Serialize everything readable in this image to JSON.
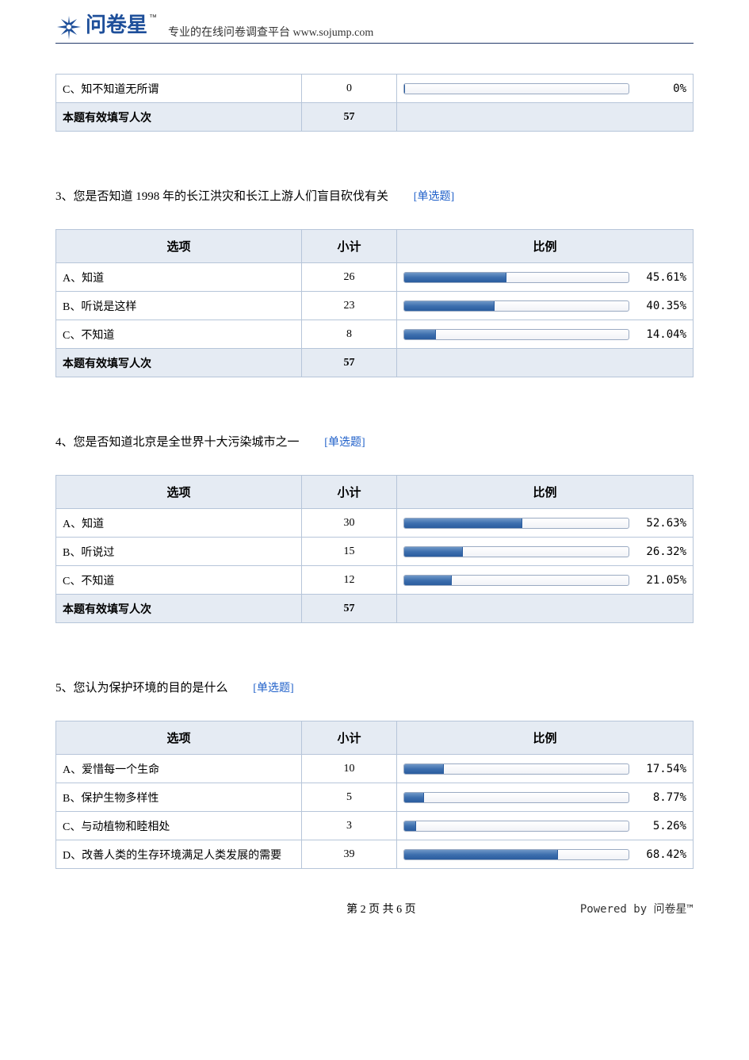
{
  "brand": {
    "logo_text": "问卷星",
    "tm": "™",
    "tagline": "专业的在线问卷调查平台 www.sojump.com",
    "logo_color": "#1e4f9a"
  },
  "colors": {
    "border": "#b6c5d9",
    "header_bg": "#e5ebf3",
    "bar_fill": "#3d6fae",
    "bar_track_border": "#9aaac2",
    "link": "#1e5fc9",
    "rule": "#233a6a"
  },
  "table_headers": {
    "option": "选项",
    "count": "小计",
    "ratio": "比例"
  },
  "total_label": "本题有效填写人次",
  "question_tag": "[单选题]",
  "partial": {
    "rows": [
      {
        "label": "C、知不知道无所谓",
        "count": 0,
        "pct": 0,
        "pct_label": "0%"
      }
    ],
    "total": 57
  },
  "questions": [
    {
      "number": "3、",
      "title": "您是否知道 1998 年的长江洪灾和长江上游人们盲目砍伐有关",
      "rows": [
        {
          "label": "A、知道",
          "count": 26,
          "pct": 45.61,
          "pct_label": "45.61%"
        },
        {
          "label": "B、听说是这样",
          "count": 23,
          "pct": 40.35,
          "pct_label": "40.35%"
        },
        {
          "label": "C、不知道",
          "count": 8,
          "pct": 14.04,
          "pct_label": "14.04%"
        }
      ],
      "total": 57
    },
    {
      "number": "4、",
      "title": "您是否知道北京是全世界十大污染城市之一",
      "rows": [
        {
          "label": "A、知道",
          "count": 30,
          "pct": 52.63,
          "pct_label": "52.63%"
        },
        {
          "label": "B、听说过",
          "count": 15,
          "pct": 26.32,
          "pct_label": "26.32%"
        },
        {
          "label": "C、不知道",
          "count": 12,
          "pct": 21.05,
          "pct_label": "21.05%"
        }
      ],
      "total": 57
    },
    {
      "number": "5、",
      "title": "您认为保护环境的目的是什么",
      "rows": [
        {
          "label": "A、爱惜每一个生命",
          "count": 10,
          "pct": 17.54,
          "pct_label": "17.54%"
        },
        {
          "label": "B、保护生物多样性",
          "count": 5,
          "pct": 8.77,
          "pct_label": "8.77%"
        },
        {
          "label": "C、与动植物和睦相处",
          "count": 3,
          "pct": 5.26,
          "pct_label": "5.26%"
        },
        {
          "label": "D、改善人类的生存环境满足人类发展的需要",
          "count": 39,
          "pct": 68.42,
          "pct_label": "68.42%"
        }
      ],
      "total": null
    }
  ],
  "footer": {
    "page_info": "第 2 页 共 6 页",
    "powered": "Powered by 问卷星™"
  }
}
